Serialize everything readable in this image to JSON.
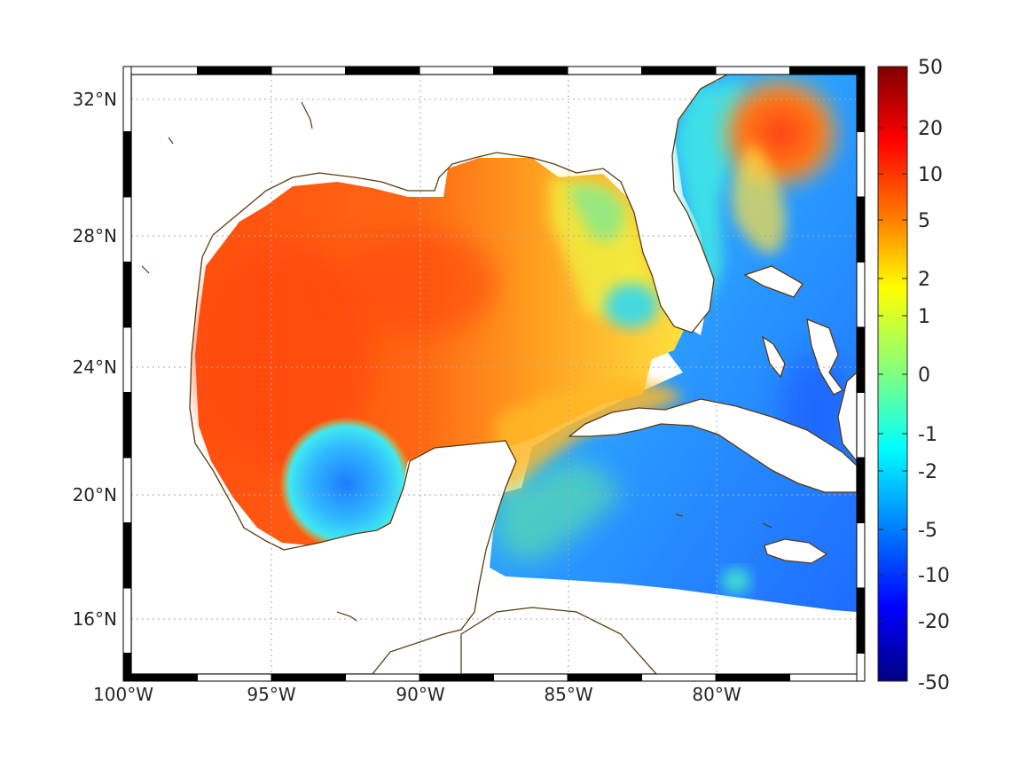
{
  "map": {
    "lon_labels": [
      "100°W",
      "95°W",
      "90°W",
      "85°W",
      "80°W"
    ],
    "lat_labels": [
      "32°N",
      "28°N",
      "24°N",
      "20°N",
      "16°N"
    ],
    "lon_range": [
      -100,
      -75.0
    ],
    "lat_range": [
      15.0,
      33.0
    ],
    "coastline_color": "#5a3a10",
    "grid": "dotted"
  },
  "colorbar": {
    "tick_labels": [
      "50",
      "20",
      "10",
      "5",
      "2",
      "1",
      "0",
      "-1",
      "-2",
      "-5",
      "-10",
      "-20",
      "-50"
    ],
    "colors": [
      "#800000",
      "#ff0000",
      "#ff8000",
      "#ffff00",
      "#80ff80",
      "#00ffff",
      "#0080ff",
      "#0000ff",
      "#000080"
    ]
  },
  "field_regions": {
    "warm": "#ff5a10",
    "orange": "#ff9a20",
    "yellow": "#ffe040",
    "cyan": "#30e0f0",
    "blue": "#2080ff"
  }
}
